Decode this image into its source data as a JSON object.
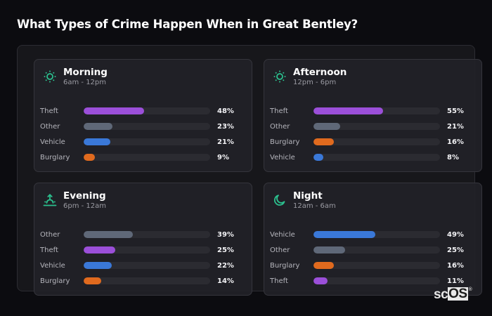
{
  "page": {
    "title": "What Types of Crime Happen When in Great Bentley?"
  },
  "colors": {
    "Theft": "#9b4fd9",
    "Other": "#5f6878",
    "Vehicle": "#3a78d8",
    "Burglary": "#e06a1e",
    "icon_accent": "#2bc08e"
  },
  "cards": [
    {
      "title": "Morning",
      "subtitle": "6am - 12pm",
      "icon": "sun-icon",
      "rows": [
        {
          "label": "Theft",
          "value": 48,
          "display": "48%"
        },
        {
          "label": "Other",
          "value": 23,
          "display": "23%"
        },
        {
          "label": "Vehicle",
          "value": 21,
          "display": "21%"
        },
        {
          "label": "Burglary",
          "value": 9,
          "display": "9%"
        }
      ]
    },
    {
      "title": "Afternoon",
      "subtitle": "12pm - 6pm",
      "icon": "sun-icon",
      "rows": [
        {
          "label": "Theft",
          "value": 55,
          "display": "55%"
        },
        {
          "label": "Other",
          "value": 21,
          "display": "21%"
        },
        {
          "label": "Burglary",
          "value": 16,
          "display": "16%"
        },
        {
          "label": "Vehicle",
          "value": 8,
          "display": "8%"
        }
      ]
    },
    {
      "title": "Evening",
      "subtitle": "6pm - 12am",
      "icon": "sunset-icon",
      "rows": [
        {
          "label": "Other",
          "value": 39,
          "display": "39%"
        },
        {
          "label": "Theft",
          "value": 25,
          "display": "25%"
        },
        {
          "label": "Vehicle",
          "value": 22,
          "display": "22%"
        },
        {
          "label": "Burglary",
          "value": 14,
          "display": "14%"
        }
      ]
    },
    {
      "title": "Night",
      "subtitle": "12am - 6am",
      "icon": "moon-icon",
      "rows": [
        {
          "label": "Vehicle",
          "value": 49,
          "display": "49%"
        },
        {
          "label": "Other",
          "value": 25,
          "display": "25%"
        },
        {
          "label": "Burglary",
          "value": 16,
          "display": "16%"
        },
        {
          "label": "Theft",
          "value": 11,
          "display": "11%"
        }
      ]
    }
  ],
  "logo": {
    "left": "sc",
    "boxed": "OS",
    "mark": "®"
  },
  "chart_data": [
    {
      "type": "bar",
      "orientation": "horizontal",
      "title": "Morning",
      "subtitle": "6am - 12pm",
      "categories": [
        "Theft",
        "Other",
        "Vehicle",
        "Burglary"
      ],
      "values": [
        48,
        23,
        21,
        9
      ],
      "unit": "%",
      "xlim": [
        0,
        100
      ]
    },
    {
      "type": "bar",
      "orientation": "horizontal",
      "title": "Afternoon",
      "subtitle": "12pm - 6pm",
      "categories": [
        "Theft",
        "Other",
        "Burglary",
        "Vehicle"
      ],
      "values": [
        55,
        21,
        16,
        8
      ],
      "unit": "%",
      "xlim": [
        0,
        100
      ]
    },
    {
      "type": "bar",
      "orientation": "horizontal",
      "title": "Evening",
      "subtitle": "6pm - 12am",
      "categories": [
        "Other",
        "Theft",
        "Vehicle",
        "Burglary"
      ],
      "values": [
        39,
        25,
        22,
        14
      ],
      "unit": "%",
      "xlim": [
        0,
        100
      ]
    },
    {
      "type": "bar",
      "orientation": "horizontal",
      "title": "Night",
      "subtitle": "12am - 6am",
      "categories": [
        "Vehicle",
        "Other",
        "Burglary",
        "Theft"
      ],
      "values": [
        49,
        25,
        16,
        11
      ],
      "unit": "%",
      "xlim": [
        0,
        100
      ]
    }
  ]
}
